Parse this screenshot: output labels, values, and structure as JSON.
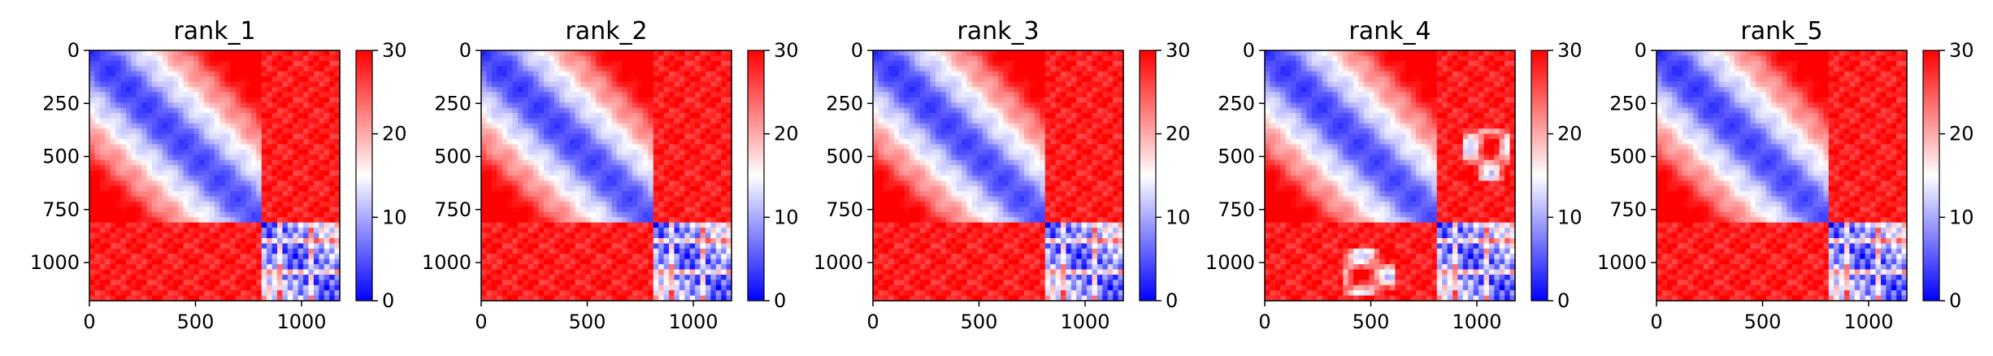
{
  "colormap": {
    "name": "bwr",
    "low": "#0000ff",
    "mid": "#ffffff",
    "high": "#ff0000",
    "range": [
      0,
      30
    ],
    "ticks": [
      "0",
      "10",
      "20",
      "30"
    ]
  },
  "chart_data": [
    {
      "type": "heatmap",
      "title": "rank_1",
      "size": 1180,
      "xlim": [
        0,
        1180
      ],
      "ylim": [
        1180,
        0
      ],
      "block_boundary": 810,
      "xticks": [
        "0",
        "500",
        "1000"
      ],
      "yticks": [
        "0",
        "250",
        "500",
        "750",
        "1000"
      ],
      "vmin": 0,
      "vmax": 30
    },
    {
      "type": "heatmap",
      "title": "rank_2",
      "size": 1180,
      "xlim": [
        0,
        1180
      ],
      "ylim": [
        1180,
        0
      ],
      "block_boundary": 810,
      "xticks": [
        "0",
        "500",
        "1000"
      ],
      "yticks": [
        "0",
        "250",
        "500",
        "750",
        "1000"
      ],
      "vmin": 0,
      "vmax": 30
    },
    {
      "type": "heatmap",
      "title": "rank_3",
      "size": 1180,
      "xlim": [
        0,
        1180
      ],
      "ylim": [
        1180,
        0
      ],
      "block_boundary": 820,
      "xticks": [
        "0",
        "500",
        "1000"
      ],
      "yticks": [
        "0",
        "250",
        "500",
        "750",
        "1000"
      ],
      "vmin": 0,
      "vmax": 30
    },
    {
      "type": "heatmap",
      "title": "rank_4",
      "size": 1180,
      "xlim": [
        0,
        1180
      ],
      "ylim": [
        1180,
        0
      ],
      "block_boundary": 820,
      "xticks": [
        "0",
        "500",
        "1000"
      ],
      "yticks": [
        "0",
        "250",
        "500",
        "750",
        "1000"
      ],
      "vmin": 0,
      "vmax": 30
    },
    {
      "type": "heatmap",
      "title": "rank_5",
      "size": 1180,
      "xlim": [
        0,
        1180
      ],
      "ylim": [
        1180,
        0
      ],
      "block_boundary": 810,
      "xticks": [
        "0",
        "500",
        "1000"
      ],
      "yticks": [
        "0",
        "250",
        "500",
        "750",
        "1000"
      ],
      "vmin": 0,
      "vmax": 30
    }
  ]
}
